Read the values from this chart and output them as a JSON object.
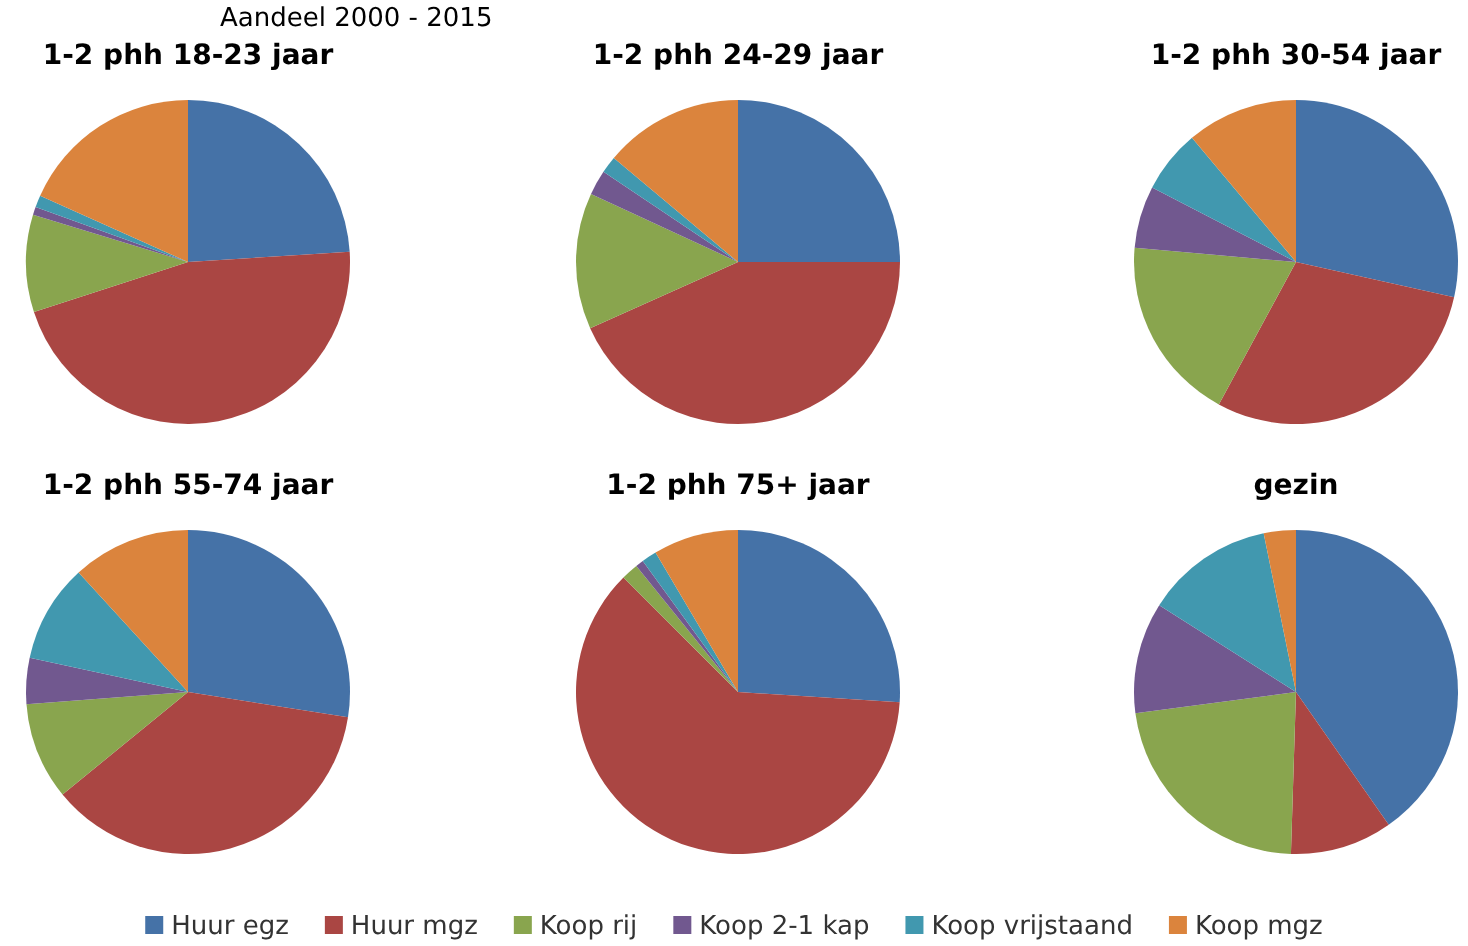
{
  "chart_data": [
    {
      "type": "pie",
      "title": "1-2 phh 18-23 jaar",
      "annotations": [
        "Aandeel 2000 - 2015"
      ],
      "categories": [
        null,
        null,
        null,
        null,
        null,
        null
      ],
      "values": [
        24,
        46,
        9.7,
        0.8,
        1.2,
        18.3
      ],
      "colors": [
        "#4572a7",
        "#aa4643",
        "#89a54e",
        "#71588f",
        "#4198af",
        "#db843d"
      ]
    },
    {
      "type": "pie",
      "title": "1-2 phh 24-29 jaar",
      "categories": [
        null,
        null,
        null,
        null,
        null,
        null
      ],
      "values": [
        25,
        43.3,
        13.6,
        2.5,
        1.7,
        13.9
      ],
      "colors": [
        "#4572a7",
        "#aa4643",
        "#89a54e",
        "#71588f",
        "#4198af",
        "#db843d"
      ]
    },
    {
      "type": "pie",
      "title": "1-2 phh 30-54 jaar",
      "categories": [
        null,
        null,
        null,
        null,
        null,
        null
      ],
      "values": [
        28.5,
        29.4,
        18.5,
        6.2,
        6.3,
        11.1
      ],
      "colors": [
        "#4572a7",
        "#aa4643",
        "#89a54e",
        "#71588f",
        "#4198af",
        "#db843d"
      ]
    },
    {
      "type": "pie",
      "title": "1-2 phh 55-74 jaar",
      "categories": [
        null,
        null,
        null,
        null,
        null,
        null
      ],
      "values": [
        27.5,
        36.6,
        9.7,
        4.6,
        9.8,
        11.8
      ],
      "colors": [
        "#4572a7",
        "#aa4643",
        "#89a54e",
        "#71588f",
        "#4198af",
        "#db843d"
      ]
    },
    {
      "type": "pie",
      "title": "1-2 phh 75+ jaar",
      "categories": [
        null,
        null,
        null,
        null,
        null,
        null
      ],
      "values": [
        26,
        61.5,
        1.7,
        0.8,
        1.5,
        8.5
      ],
      "colors": [
        "#4572a7",
        "#aa4643",
        "#89a54e",
        "#71588f",
        "#4198af",
        "#db843d"
      ]
    },
    {
      "type": "pie",
      "title": "gezin",
      "legend": "bottom",
      "categories": [
        "Huur egz",
        "Huur mgz",
        "Koop rij",
        "Koop 2-1 kap",
        "Koop vrijstaand",
        "Koop mgz"
      ],
      "values": [
        40.3,
        10.2,
        22.4,
        11.1,
        12.8,
        3.2
      ],
      "colors": [
        "#4572a7",
        "#aa4643",
        "#89a54e",
        "#71588f",
        "#4198af",
        "#db843d"
      ]
    }
  ]
}
